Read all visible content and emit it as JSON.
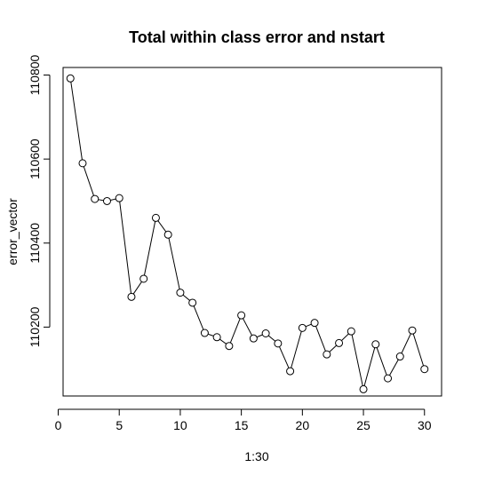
{
  "chart_data": {
    "type": "line",
    "title": "Total within class error and nstart",
    "xlabel": "1:30",
    "ylabel": "error_vector",
    "markers": "open-circle",
    "grid": false,
    "x": [
      1,
      2,
      3,
      4,
      5,
      6,
      7,
      8,
      9,
      10,
      11,
      12,
      13,
      14,
      15,
      16,
      17,
      18,
      19,
      20,
      21,
      22,
      23,
      24,
      25,
      26,
      27,
      28,
      29,
      30
    ],
    "values": [
      110792,
      110590,
      110505,
      110500,
      110507,
      110272,
      110315,
      110460,
      110420,
      110282,
      110258,
      110186,
      110176,
      110155,
      110228,
      110173,
      110185,
      110161,
      110095,
      110198,
      110210,
      110135,
      110162,
      110190,
      110052,
      110159,
      110078,
      110130,
      110192,
      110100
    ],
    "xlim": [
      0.4,
      31.4
    ],
    "ylim": [
      110036,
      110818
    ],
    "xticks": [
      0,
      5,
      10,
      15,
      20,
      25,
      30
    ],
    "yticks": [
      110200,
      110400,
      110600,
      110800
    ],
    "xtick_labels": [
      "0",
      "5",
      "10",
      "15",
      "20",
      "25",
      "30"
    ],
    "ytick_labels": [
      "110200",
      "110400",
      "110600",
      "110800"
    ]
  }
}
